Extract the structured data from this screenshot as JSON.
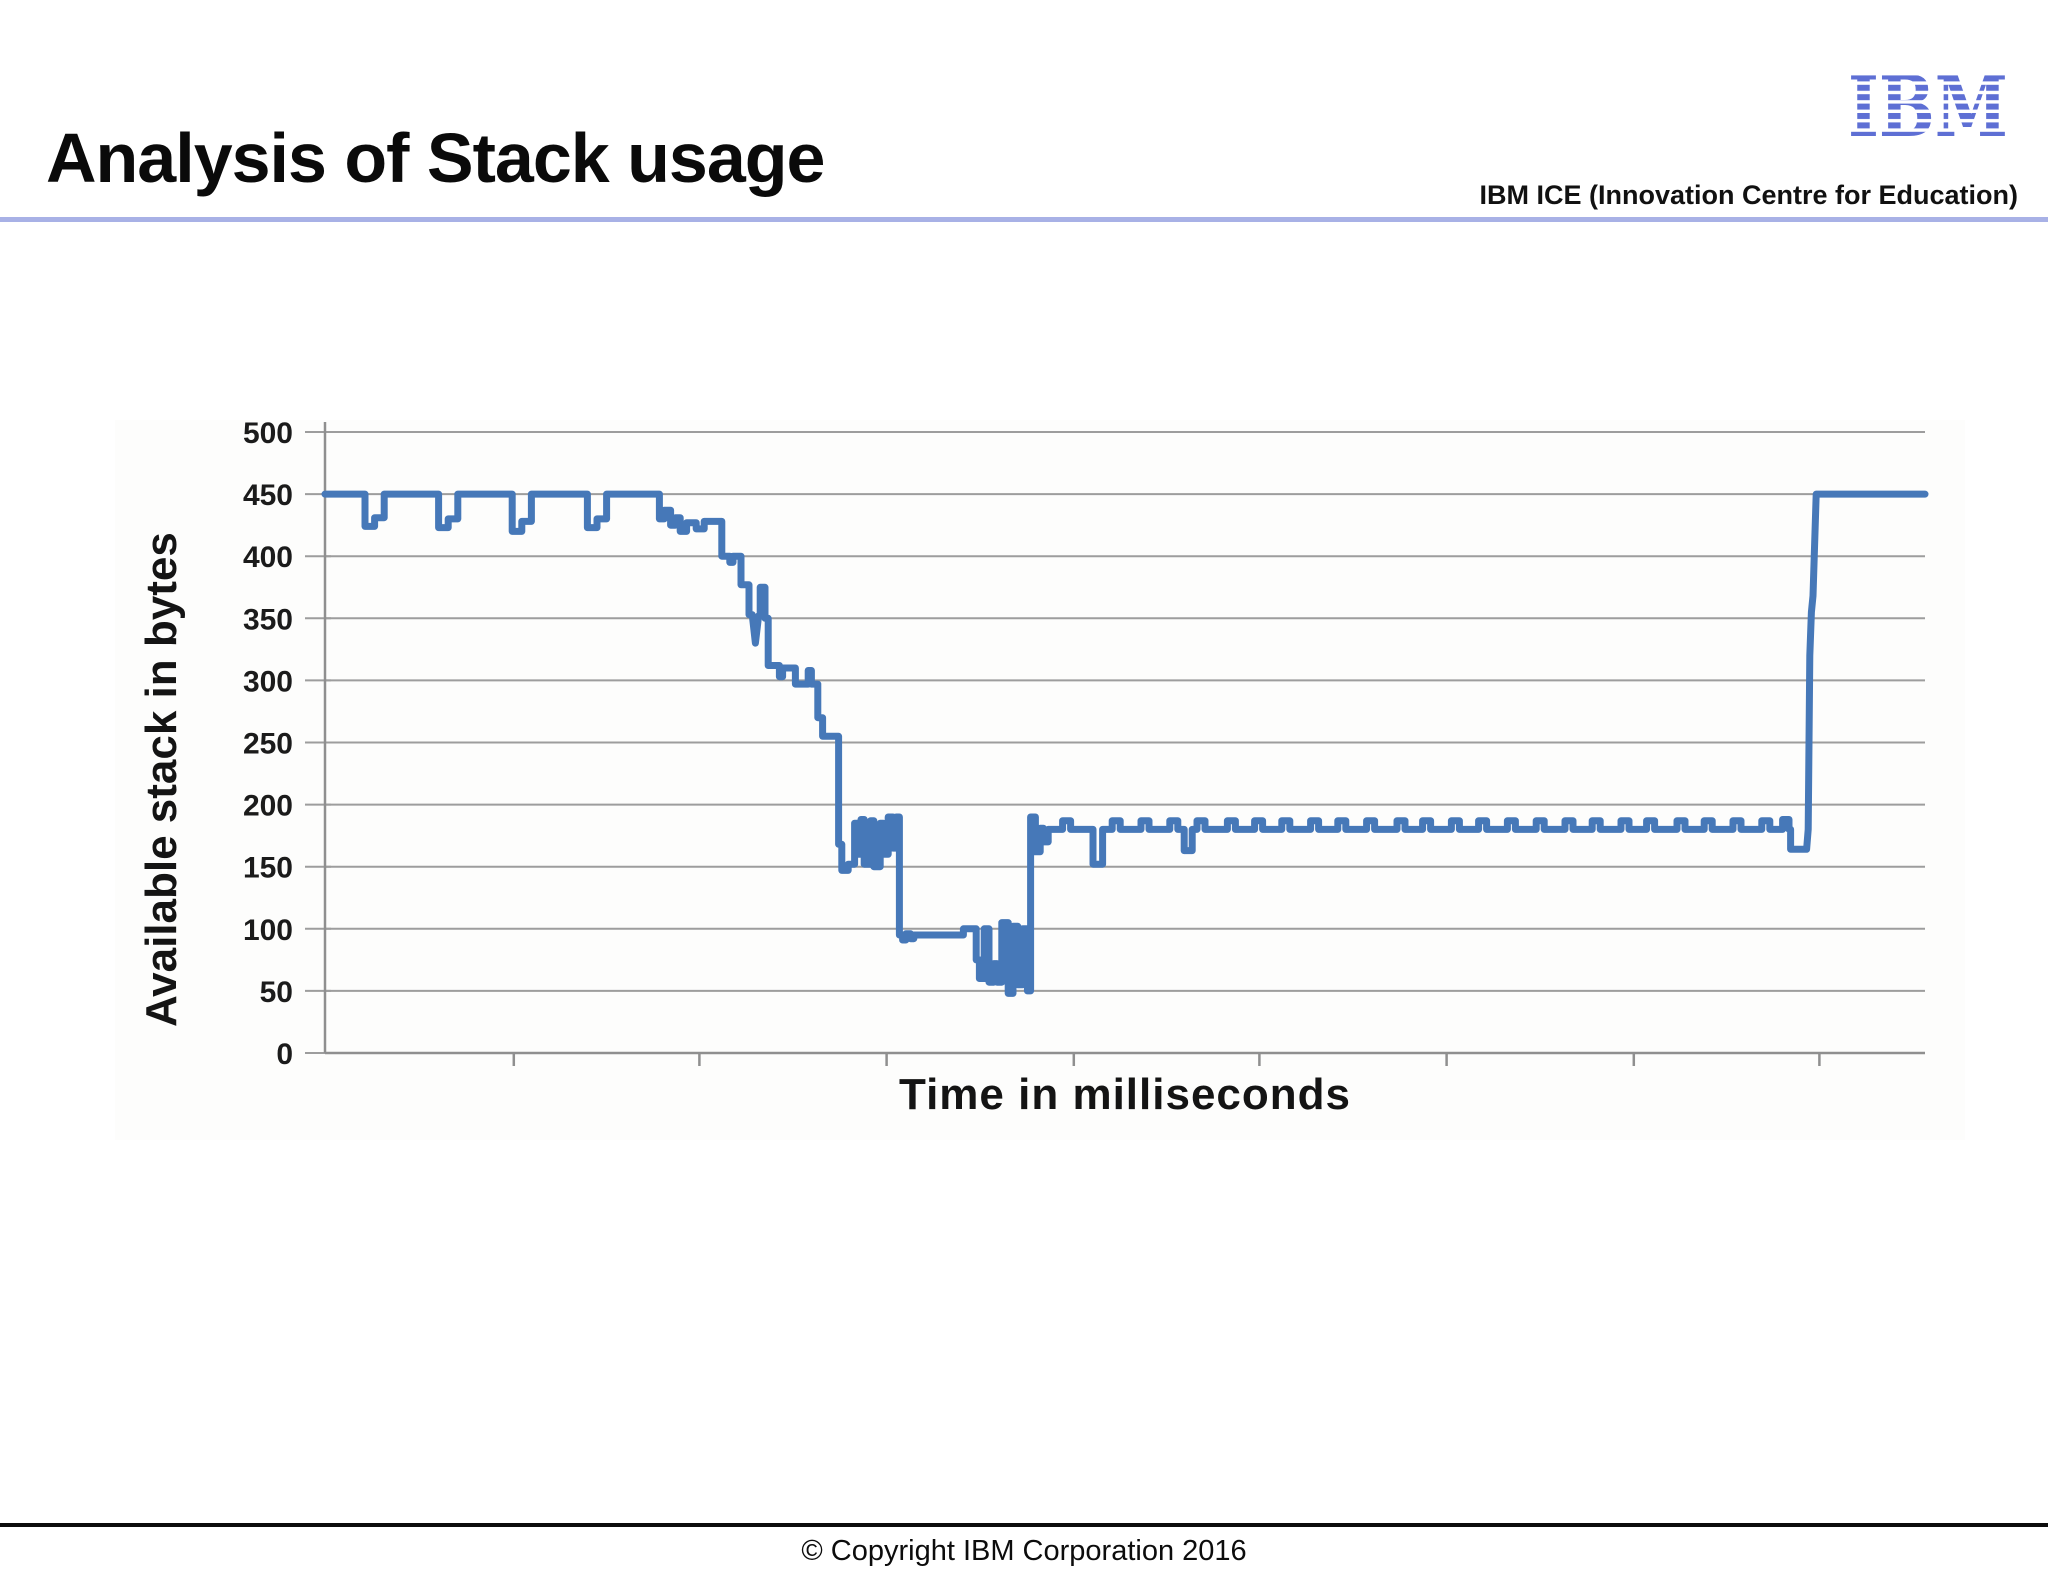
{
  "slide": {
    "title": "Analysis of Stack usage",
    "header_right": "IBM ICE (Innovation Centre for Education)",
    "logo_text": "IBM",
    "footer": "© Copyright IBM Corporation 2016"
  },
  "colors": {
    "header_rule": "#a8b1e6",
    "ibm_logo_blue": "#5e6fd4",
    "footer_rule": "#0c0c0c",
    "line_blue": "#4678b8",
    "grid_gray": "#9d9d9d",
    "axis_gray": "#8f8f8f",
    "chart_text": "#1b1b1b"
  },
  "chart_data": {
    "type": "line",
    "title": "",
    "xlabel": "Time in milliseconds",
    "ylabel": "Available stack in bytes",
    "ylim": [
      0,
      500
    ],
    "yticks": [
      500,
      450,
      400,
      350,
      300,
      250,
      200,
      150,
      100,
      50,
      0
    ],
    "x_tick_labels_visible": false,
    "x_ticks": [
      118,
      234,
      351,
      468,
      584,
      701,
      818,
      934
    ],
    "grid": true,
    "legend": "none",
    "x_unit": "milliseconds (unlabeled ticks)",
    "series": [
      {
        "name": "Available stack in bytes",
        "color": "#4678b8",
        "points": [
          [
            0,
            450
          ],
          [
            25,
            450
          ],
          [
            25,
            424
          ],
          [
            31,
            424
          ],
          [
            31,
            431
          ],
          [
            37,
            431
          ],
          [
            37,
            450
          ],
          [
            71,
            450
          ],
          [
            71,
            423
          ],
          [
            77,
            423
          ],
          [
            77,
            430
          ],
          [
            83,
            430
          ],
          [
            83,
            450
          ],
          [
            117,
            450
          ],
          [
            117,
            420
          ],
          [
            123,
            420
          ],
          [
            123,
            428
          ],
          [
            129,
            428
          ],
          [
            129,
            450
          ],
          [
            164,
            450
          ],
          [
            164,
            423
          ],
          [
            170,
            423
          ],
          [
            170,
            430
          ],
          [
            176,
            430
          ],
          [
            176,
            450
          ],
          [
            209,
            450
          ],
          [
            209,
            430
          ],
          [
            212,
            430
          ],
          [
            212,
            437
          ],
          [
            216,
            437
          ],
          [
            216,
            425
          ],
          [
            219,
            425
          ],
          [
            219,
            431
          ],
          [
            222,
            431
          ],
          [
            222,
            420
          ],
          [
            226,
            420
          ],
          [
            226,
            427
          ],
          [
            232,
            427
          ],
          [
            232,
            422
          ],
          [
            237,
            422
          ],
          [
            237,
            428
          ],
          [
            248,
            428
          ],
          [
            248,
            400
          ],
          [
            253,
            400
          ],
          [
            253,
            395
          ],
          [
            255,
            395
          ],
          [
            255,
            400
          ],
          [
            260,
            400
          ],
          [
            260,
            377
          ],
          [
            265,
            377
          ],
          [
            265,
            353
          ],
          [
            267,
            353
          ],
          [
            269,
            330
          ],
          [
            271,
            352
          ],
          [
            272,
            352
          ],
          [
            272,
            375
          ],
          [
            275,
            375
          ],
          [
            275,
            350
          ],
          [
            277,
            350
          ],
          [
            277,
            312
          ],
          [
            284,
            312
          ],
          [
            284,
            303
          ],
          [
            286,
            303
          ],
          [
            286,
            310
          ],
          [
            294,
            310
          ],
          [
            294,
            297
          ],
          [
            302,
            297
          ],
          [
            302,
            308
          ],
          [
            304,
            308
          ],
          [
            304,
            297
          ],
          [
            308,
            297
          ],
          [
            308,
            270
          ],
          [
            311,
            270
          ],
          [
            311,
            255
          ],
          [
            321,
            255
          ],
          [
            321,
            168
          ],
          [
            323,
            168
          ],
          [
            323,
            147
          ],
          [
            327,
            147
          ],
          [
            327,
            152
          ],
          [
            331,
            152
          ],
          [
            331,
            185
          ],
          [
            333,
            185
          ],
          [
            333,
            160
          ],
          [
            335,
            160
          ],
          [
            335,
            188
          ],
          [
            337,
            188
          ],
          [
            337,
            152
          ],
          [
            341,
            152
          ],
          [
            341,
            187
          ],
          [
            343,
            187
          ],
          [
            343,
            150
          ],
          [
            347,
            150
          ],
          [
            347,
            185
          ],
          [
            349,
            185
          ],
          [
            349,
            160
          ],
          [
            352,
            160
          ],
          [
            352,
            190
          ],
          [
            355,
            190
          ],
          [
            355,
            165
          ],
          [
            357,
            165
          ],
          [
            357,
            190
          ],
          [
            359,
            190
          ],
          [
            359,
            95
          ],
          [
            361,
            95
          ],
          [
            361,
            91
          ],
          [
            363,
            91
          ],
          [
            363,
            96
          ],
          [
            366,
            96
          ],
          [
            366,
            92
          ],
          [
            368,
            92
          ],
          [
            368,
            95
          ],
          [
            399,
            95
          ],
          [
            399,
            100
          ],
          [
            407,
            100
          ],
          [
            407,
            75
          ],
          [
            409,
            75
          ],
          [
            409,
            60
          ],
          [
            412,
            60
          ],
          [
            412,
            100
          ],
          [
            415,
            100
          ],
          [
            415,
            57
          ],
          [
            418,
            57
          ],
          [
            418,
            72
          ],
          [
            420,
            72
          ],
          [
            420,
            57
          ],
          [
            423,
            57
          ],
          [
            423,
            105
          ],
          [
            427,
            105
          ],
          [
            427,
            48
          ],
          [
            430,
            48
          ],
          [
            430,
            102
          ],
          [
            433,
            102
          ],
          [
            433,
            55
          ],
          [
            436,
            55
          ],
          [
            436,
            100
          ],
          [
            439,
            100
          ],
          [
            439,
            50
          ],
          [
            441,
            50
          ],
          [
            441,
            190
          ],
          [
            444,
            190
          ],
          [
            444,
            162
          ],
          [
            447,
            162
          ],
          [
            447,
            181
          ],
          [
            449,
            181
          ],
          [
            449,
            170
          ],
          [
            452,
            170
          ],
          [
            452,
            180
          ],
          [
            461,
            180
          ],
          [
            461,
            187
          ],
          [
            466,
            187
          ],
          [
            466,
            180
          ],
          [
            480,
            180
          ],
          [
            480,
            152
          ],
          [
            486,
            152
          ],
          [
            486,
            180
          ],
          [
            492,
            180
          ],
          [
            492,
            187
          ],
          [
            497,
            187
          ],
          [
            497,
            180
          ],
          [
            510,
            180
          ],
          [
            510,
            187
          ],
          [
            515,
            187
          ],
          [
            515,
            180
          ],
          [
            528,
            180
          ],
          [
            528,
            187
          ],
          [
            533,
            187
          ],
          [
            533,
            180
          ],
          [
            537,
            180
          ],
          [
            537,
            163
          ],
          [
            542,
            163
          ],
          [
            542,
            180
          ],
          [
            545,
            180
          ],
          [
            545,
            187
          ],
          [
            550,
            187
          ],
          [
            550,
            180
          ],
          [
            564,
            180
          ],
          [
            564,
            187
          ],
          [
            569,
            187
          ],
          [
            569,
            180
          ],
          [
            581,
            180
          ],
          [
            581,
            187
          ],
          [
            586,
            187
          ],
          [
            586,
            180
          ],
          [
            598,
            180
          ],
          [
            598,
            187
          ],
          [
            603,
            187
          ],
          [
            603,
            180
          ],
          [
            616,
            180
          ],
          [
            616,
            187
          ],
          [
            621,
            187
          ],
          [
            621,
            180
          ],
          [
            633,
            180
          ],
          [
            633,
            187
          ],
          [
            638,
            187
          ],
          [
            638,
            180
          ],
          [
            651,
            180
          ],
          [
            651,
            187
          ],
          [
            656,
            187
          ],
          [
            656,
            180
          ],
          [
            670,
            180
          ],
          [
            670,
            187
          ],
          [
            675,
            187
          ],
          [
            675,
            180
          ],
          [
            686,
            180
          ],
          [
            686,
            187
          ],
          [
            691,
            187
          ],
          [
            691,
            180
          ],
          [
            704,
            180
          ],
          [
            704,
            187
          ],
          [
            709,
            187
          ],
          [
            709,
            180
          ],
          [
            721,
            180
          ],
          [
            721,
            187
          ],
          [
            726,
            187
          ],
          [
            726,
            180
          ],
          [
            739,
            180
          ],
          [
            739,
            187
          ],
          [
            744,
            187
          ],
          [
            744,
            180
          ],
          [
            757,
            180
          ],
          [
            757,
            187
          ],
          [
            762,
            187
          ],
          [
            762,
            180
          ],
          [
            775,
            180
          ],
          [
            775,
            187
          ],
          [
            780,
            187
          ],
          [
            780,
            180
          ],
          [
            792,
            180
          ],
          [
            792,
            187
          ],
          [
            797,
            187
          ],
          [
            797,
            180
          ],
          [
            810,
            180
          ],
          [
            810,
            187
          ],
          [
            815,
            187
          ],
          [
            815,
            180
          ],
          [
            826,
            180
          ],
          [
            826,
            187
          ],
          [
            831,
            187
          ],
          [
            831,
            180
          ],
          [
            845,
            180
          ],
          [
            845,
            187
          ],
          [
            850,
            187
          ],
          [
            850,
            180
          ],
          [
            862,
            180
          ],
          [
            862,
            187
          ],
          [
            867,
            187
          ],
          [
            867,
            180
          ],
          [
            880,
            180
          ],
          [
            880,
            187
          ],
          [
            885,
            187
          ],
          [
            885,
            180
          ],
          [
            898,
            180
          ],
          [
            898,
            187
          ],
          [
            903,
            187
          ],
          [
            903,
            180
          ],
          [
            911,
            180
          ],
          [
            911,
            188
          ],
          [
            915,
            188
          ],
          [
            915,
            180
          ],
          [
            916,
            180
          ],
          [
            916,
            164
          ],
          [
            926,
            164
          ],
          [
            927,
            180
          ],
          [
            928,
            320
          ],
          [
            929,
            355
          ],
          [
            930,
            368
          ],
          [
            932,
            450
          ],
          [
            1000,
            450
          ]
        ]
      }
    ]
  }
}
